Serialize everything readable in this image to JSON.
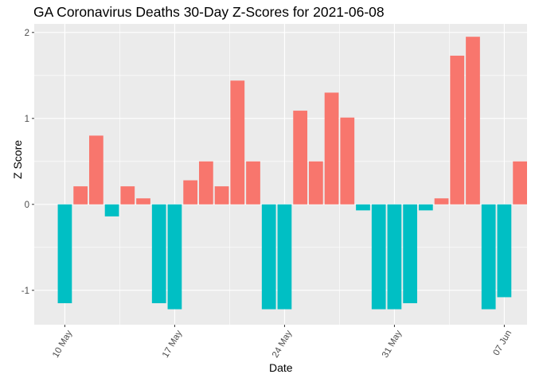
{
  "chart_data": {
    "type": "bar",
    "title": "GA Coronavirus Deaths 30-Day Z-Scores for 2021-06-08",
    "xlabel": "Date",
    "ylabel": "Z Score",
    "x": [
      "2021-05-10",
      "2021-05-11",
      "2021-05-12",
      "2021-05-13",
      "2021-05-14",
      "2021-05-15",
      "2021-05-16",
      "2021-05-17",
      "2021-05-18",
      "2021-05-19",
      "2021-05-20",
      "2021-05-21",
      "2021-05-22",
      "2021-05-23",
      "2021-05-24",
      "2021-05-25",
      "2021-05-26",
      "2021-05-27",
      "2021-05-28",
      "2021-05-29",
      "2021-05-30",
      "2021-05-31",
      "2021-06-01",
      "2021-06-02",
      "2021-06-03",
      "2021-06-04",
      "2021-06-05",
      "2021-06-06",
      "2021-06-07",
      "2021-06-08"
    ],
    "values": [
      -1.15,
      0.21,
      0.8,
      -0.14,
      0.21,
      0.07,
      -1.15,
      -1.22,
      0.28,
      0.5,
      0.21,
      1.44,
      0.5,
      -1.22,
      -1.22,
      1.09,
      0.5,
      1.3,
      1.01,
      -0.07,
      -1.22,
      -1.22,
      -1.15,
      -0.07,
      0.07,
      1.73,
      1.95,
      -1.22,
      -1.08,
      0.5
    ],
    "xticks": [
      {
        "date": "2021-05-10",
        "label": "10 May"
      },
      {
        "date": "2021-05-17",
        "label": "17 May"
      },
      {
        "date": "2021-05-24",
        "label": "24 May"
      },
      {
        "date": "2021-05-31",
        "label": "31 May"
      },
      {
        "date": "2021-06-07",
        "label": "07 Jun"
      }
    ],
    "yticks": [
      -1,
      0,
      1,
      2
    ],
    "ylim": [
      -1.4,
      2.1
    ],
    "colors": {
      "positive": "#F8766D",
      "negative": "#00BFC4",
      "panel": "#EBEBEB",
      "grid": "#FFFFFF"
    },
    "legend": "none",
    "grid": true
  }
}
